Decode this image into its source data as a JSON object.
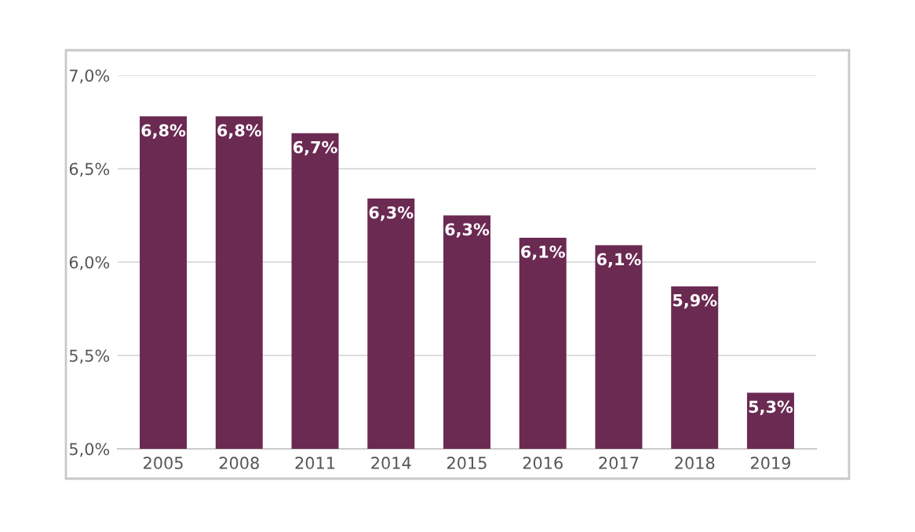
{
  "chart_data": {
    "type": "bar",
    "categories": [
      "2005",
      "2008",
      "2011",
      "2014",
      "2015",
      "2016",
      "2017",
      "2018",
      "2019"
    ],
    "values": [
      6.78,
      6.78,
      6.69,
      6.34,
      6.25,
      6.13,
      6.09,
      5.87,
      5.3
    ],
    "value_labels": [
      "6,8%",
      "6,8%",
      "6,7%",
      "6,3%",
      "6,3%",
      "6,1%",
      "6,1%",
      "5,9%",
      "5,3%"
    ],
    "color": "#6b2a52",
    "ylim": [
      5.0,
      7.0
    ],
    "yticks": [
      {
        "value": 5.0,
        "label": "5,0%"
      },
      {
        "value": 5.5,
        "label": "5,5%"
      },
      {
        "value": 6.0,
        "label": "6,0%"
      },
      {
        "value": 6.5,
        "label": "6,5%"
      },
      {
        "value": 7.0,
        "label": "7,0%"
      }
    ],
    "grid": "y"
  }
}
